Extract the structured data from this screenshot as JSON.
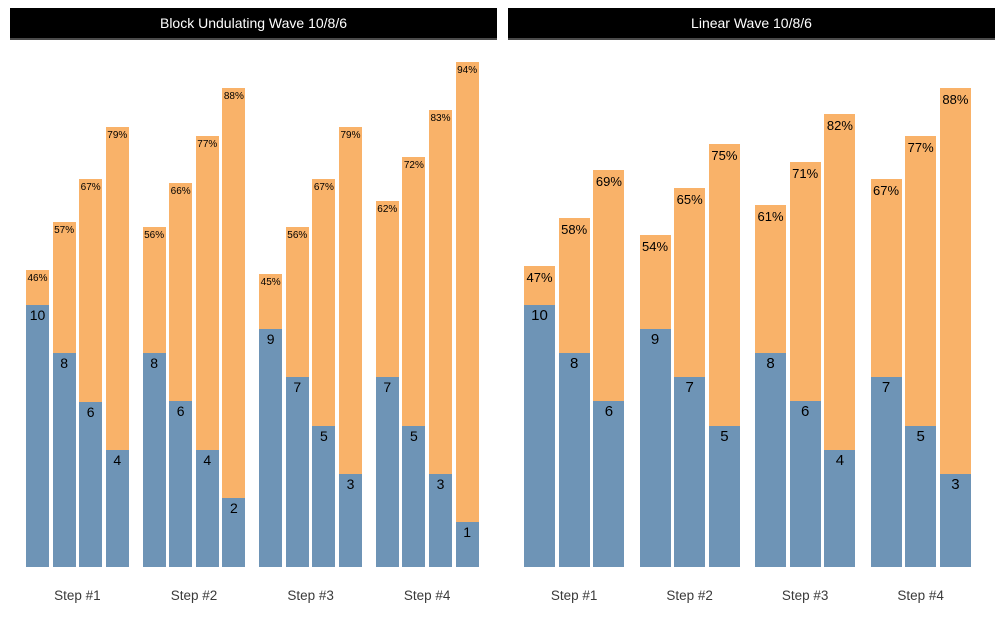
{
  "colors": {
    "reps_bar": "#6E94B6",
    "intensity_bar": "#F9B269",
    "title_bg": "#000000",
    "title_text": "#FFFFFF",
    "value_label": "#000000",
    "axis_label": "#3A3A3A",
    "background": "#FFFFFF"
  },
  "chart_data": [
    {
      "type": "bar",
      "title": "Block Undulating Wave 10/8/6",
      "categories": [
        "Step #1",
        "Step #2",
        "Step #3",
        "Step #4"
      ],
      "series": [
        {
          "name": "reps",
          "role": "blue-bottom-segment"
        },
        {
          "name": "intensity_pct",
          "role": "orange-bar-total-height"
        }
      ],
      "legend": "none",
      "axes": "hidden",
      "groups": [
        {
          "label": "Step #1",
          "reps": [
            10,
            8,
            6,
            4
          ],
          "pct": [
            46,
            57,
            67,
            79
          ],
          "pct_labels": [
            "46%",
            "57%",
            "67%",
            "79%"
          ]
        },
        {
          "label": "Step #2",
          "reps": [
            8,
            6,
            4,
            2
          ],
          "pct": [
            56,
            66,
            77,
            88
          ],
          "pct_labels": [
            "56%",
            "66%",
            "77%",
            "88%"
          ]
        },
        {
          "label": "Step #3",
          "reps": [
            9,
            7,
            5,
            3
          ],
          "pct": [
            45,
            56,
            67,
            79
          ],
          "pct_labels": [
            "45%",
            "56%",
            "67%",
            "79%"
          ]
        },
        {
          "label": "Step #4",
          "reps": [
            7,
            5,
            3,
            1
          ],
          "pct": [
            62,
            72,
            83,
            94
          ],
          "pct_labels": [
            "62%",
            "72%",
            "83%",
            "94%"
          ]
        }
      ]
    },
    {
      "type": "bar",
      "title": "Linear Wave 10/8/6",
      "categories": [
        "Step #1",
        "Step #2",
        "Step #3",
        "Step #4"
      ],
      "series": [
        {
          "name": "reps",
          "role": "blue-bottom-segment"
        },
        {
          "name": "intensity_pct",
          "role": "orange-bar-total-height"
        }
      ],
      "legend": "none",
      "axes": "hidden",
      "groups": [
        {
          "label": "Step #1",
          "reps": [
            10,
            8,
            6
          ],
          "pct": [
            47,
            58,
            69
          ],
          "pct_labels": [
            "47%",
            "58%",
            "69%"
          ]
        },
        {
          "label": "Step #2",
          "reps": [
            9,
            7,
            5
          ],
          "pct": [
            54,
            65,
            75
          ],
          "pct_labels": [
            "54%",
            "65%",
            "75%"
          ]
        },
        {
          "label": "Step #3",
          "reps": [
            8,
            6,
            4
          ],
          "pct": [
            61,
            71,
            82
          ],
          "pct_labels": [
            "61%",
            "71%",
            "82%"
          ]
        },
        {
          "label": "Step #4",
          "reps": [
            7,
            5,
            3
          ],
          "pct": [
            67,
            77,
            88
          ],
          "pct_labels": [
            "67%",
            "77%",
            "88%"
          ]
        }
      ]
    }
  ]
}
